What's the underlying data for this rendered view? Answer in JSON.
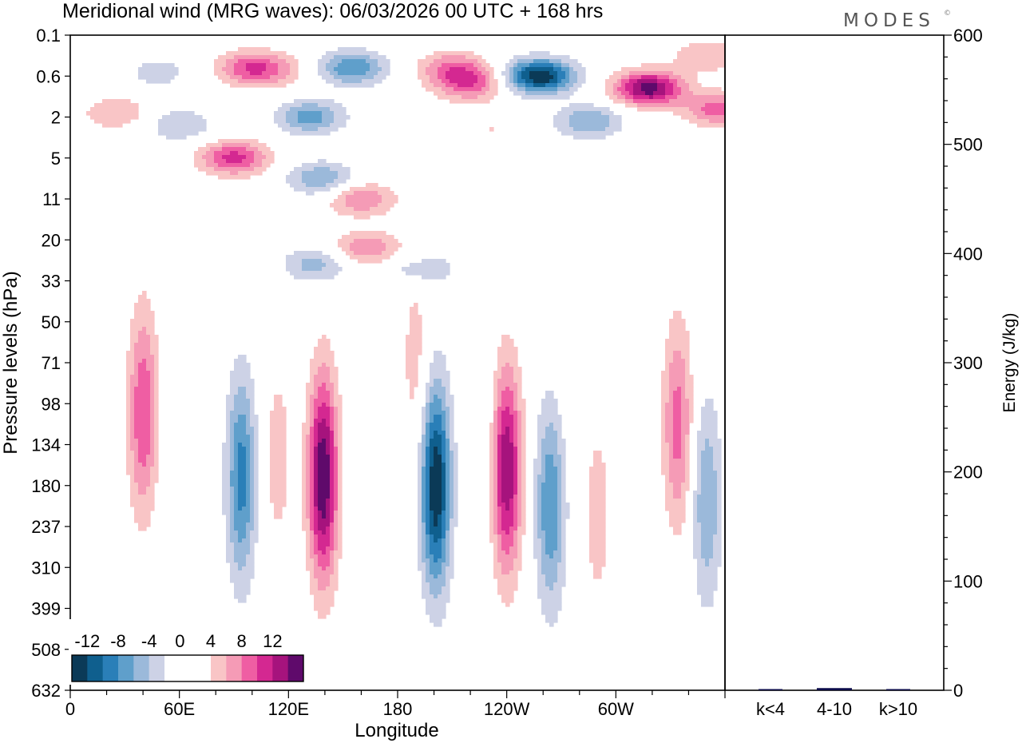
{
  "brand": {
    "name": "MODES",
    "mark": "©"
  },
  "chart_data": [
    {
      "type": "heatmap",
      "title": "Meridional wind (MRG waves):  06/03/2026  00 UTC  + 168 hrs",
      "xlabel": "Longitude",
      "ylabel": "Pressure levels (hPa)",
      "x_ticks": [
        "0",
        "60E",
        "120E",
        "180",
        "120W",
        "60W"
      ],
      "x_tick_degrees": [
        0,
        60,
        120,
        180,
        240,
        300
      ],
      "xlim": [
        0,
        360
      ],
      "y_ticks": [
        "0.1",
        "0.6",
        "2",
        "5",
        "11",
        "20",
        "33",
        "50",
        "71",
        "98",
        "134",
        "180",
        "237",
        "310",
        "399",
        "508",
        "632"
      ],
      "colorbar": {
        "labels": [
          "-12",
          "-8",
          "-4",
          "0",
          "4",
          "8",
          "12"
        ],
        "levels": [
          -14,
          -12,
          -10,
          -8,
          -6,
          -4,
          -2,
          -1,
          1,
          2,
          4,
          6,
          8,
          10,
          12,
          14
        ],
        "colors": [
          "#0b3a57",
          "#0f5f8e",
          "#2a7fb8",
          "#5f9fcb",
          "#9bb9da",
          "#cdd2e6",
          "#ffffff",
          "#ffffff",
          "#ffffff",
          "#f9c5c6",
          "#f59bb6",
          "#ef5ea3",
          "#d42891",
          "#a6137d",
          "#5f0a6b"
        ]
      },
      "features": [
        {
          "lon": 15,
          "lev": 13.5,
          "value": 2
        },
        {
          "lon": 40,
          "lev": 9.2,
          "value": 8
        },
        {
          "lon": 59,
          "lev": 10.4,
          "value": -2
        },
        {
          "lon": 94,
          "lev": 10.8,
          "value": -9
        },
        {
          "lon": 114,
          "lev": 10.3,
          "value": 3
        },
        {
          "lon": 139,
          "lev": 10.8,
          "value": 14
        },
        {
          "lon": 168,
          "lev": 10.3,
          "value": -2
        },
        {
          "lon": 201,
          "lev": 11.0,
          "value": -14
        },
        {
          "lon": 226,
          "lev": 9.7,
          "value": -2
        },
        {
          "lon": 240,
          "lev": 10.6,
          "value": 12
        },
        {
          "lon": 264,
          "lev": 11.5,
          "value": -8
        },
        {
          "lon": 290,
          "lev": 11.7,
          "value": 3
        },
        {
          "lon": 334,
          "lev": 9.5,
          "value": 7
        },
        {
          "lon": 350,
          "lev": 11.4,
          "value": -6
        },
        {
          "lon": 100,
          "lev": 0.8,
          "value": 8
        },
        {
          "lon": 118,
          "lev": 0.9,
          "value": 2
        },
        {
          "lon": 155,
          "lev": 0.8,
          "value": -8
        },
        {
          "lon": 210,
          "lev": 0.8,
          "value": 6
        },
        {
          "lon": 258,
          "lev": 1.0,
          "value": -14
        },
        {
          "lon": 318,
          "lev": 1.3,
          "value": 13
        },
        {
          "lon": 350,
          "lev": 0.5,
          "value": 4
        },
        {
          "lon": 356,
          "lev": 1.8,
          "value": 7
        },
        {
          "lon": 60,
          "lev": 2.2,
          "value": -4
        },
        {
          "lon": 132,
          "lev": 2.0,
          "value": -7
        },
        {
          "lon": 90,
          "lev": 3.0,
          "value": 9
        },
        {
          "lon": 138,
          "lev": 3.5,
          "value": -6
        },
        {
          "lon": 160,
          "lev": 4.0,
          "value": 6
        },
        {
          "lon": 163,
          "lev": 5.2,
          "value": 6
        },
        {
          "lon": 135,
          "lev": 5.6,
          "value": -5
        },
        {
          "lon": 193,
          "lev": 5.7,
          "value": -4
        },
        {
          "lon": 25,
          "lev": 1.9,
          "value": 4
        },
        {
          "lon": 285,
          "lev": 2.1,
          "value": -6
        },
        {
          "lon": 220,
          "lev": 1.2,
          "value": 7
        },
        {
          "lon": 48,
          "lev": 0.9,
          "value": -3
        },
        {
          "lon": 316,
          "lev": 3.4,
          "value": 2
        },
        {
          "lon": 232,
          "lev": 2.3,
          "value": 2
        },
        {
          "lon": 248,
          "lev": 5.6,
          "value": -2
        },
        {
          "lon": 190,
          "lev": 8.0,
          "value": 3
        },
        {
          "lon": 275,
          "lev": 7.0,
          "value": 2
        }
      ]
    },
    {
      "type": "bar",
      "ylabel": "Energy (J/kg)",
      "categories": [
        "k<4",
        "4-10",
        "k>10"
      ],
      "values": [
        0.3,
        2.0,
        0.4
      ],
      "ylim": [
        0,
        600
      ],
      "y_ticks": [
        "0",
        "100",
        "200",
        "300",
        "400",
        "500",
        "600"
      ],
      "y_tick_values": [
        0,
        100,
        200,
        300,
        400,
        500,
        600
      ],
      "bar_color": "#0b0b4a"
    }
  ]
}
